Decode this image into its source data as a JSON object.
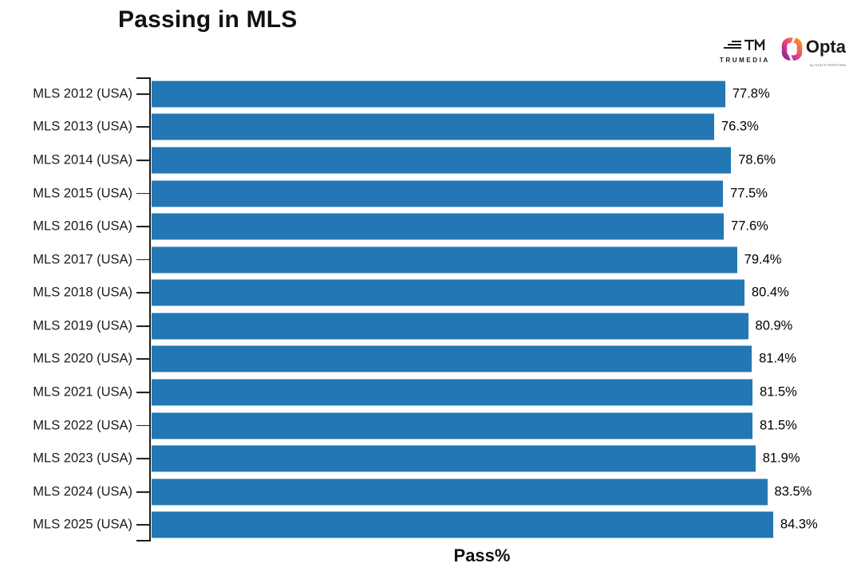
{
  "header": {
    "title": "Passing in MLS"
  },
  "logos": {
    "trumedia_text": "TRUMEDIA",
    "opta_text": "Opta",
    "opta_subtext": "by STATS PERFORM"
  },
  "chart_data": {
    "type": "bar",
    "orientation": "horizontal",
    "title": "Passing in MLS",
    "xlabel": "Pass%",
    "ylabel": "",
    "categories": [
      "MLS 2012 (USA)",
      "MLS 2013 (USA)",
      "MLS 2014 (USA)",
      "MLS 2015 (USA)",
      "MLS 2016 (USA)",
      "MLS 2017 (USA)",
      "MLS 2018 (USA)",
      "MLS 2019 (USA)",
      "MLS 2020 (USA)",
      "MLS 2021 (USA)",
      "MLS 2022 (USA)",
      "MLS 2023 (USA)",
      "MLS 2024 (USA)",
      "MLS 2025 (USA)"
    ],
    "values": [
      77.8,
      76.3,
      78.6,
      77.5,
      77.6,
      79.4,
      80.4,
      80.9,
      81.4,
      81.5,
      81.5,
      81.9,
      83.5,
      84.3
    ],
    "value_labels": [
      "77.8%",
      "76.3%",
      "78.6%",
      "77.5%",
      "77.6%",
      "79.4%",
      "80.4%",
      "80.9%",
      "81.4%",
      "81.5%",
      "81.5%",
      "81.9%",
      "83.5%",
      "84.3%"
    ],
    "xlim": [
      0,
      95
    ],
    "grid": false,
    "legend": false,
    "bar_color": "#2277b4"
  }
}
